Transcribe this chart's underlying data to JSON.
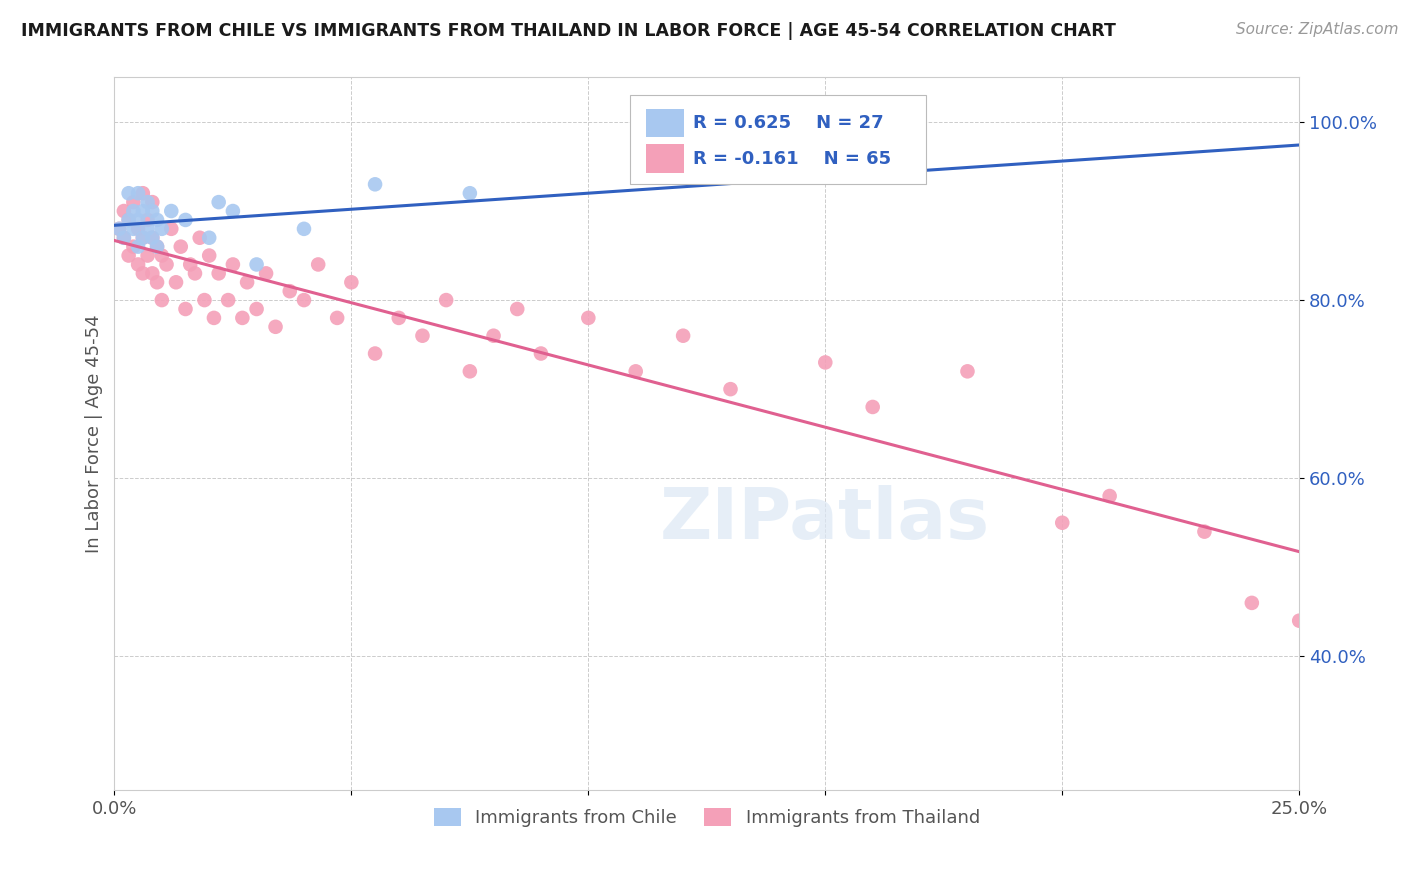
{
  "title": "IMMIGRANTS FROM CHILE VS IMMIGRANTS FROM THAILAND IN LABOR FORCE | AGE 45-54 CORRELATION CHART",
  "source": "Source: ZipAtlas.com",
  "ylabel": "In Labor Force | Age 45-54",
  "xmin": 0.0,
  "xmax": 0.25,
  "ymin": 0.25,
  "ymax": 1.05,
  "chile_color": "#a8c8f0",
  "thailand_color": "#f4a0b8",
  "chile_line_color": "#3060c0",
  "thailand_line_color": "#e06090",
  "R_chile": 0.625,
  "N_chile": 27,
  "R_thailand": -0.161,
  "N_thailand": 65,
  "legend_color": "#3060c0",
  "chile_points_x": [
    0.001,
    0.002,
    0.003,
    0.003,
    0.004,
    0.004,
    0.005,
    0.005,
    0.005,
    0.006,
    0.006,
    0.007,
    0.007,
    0.008,
    0.008,
    0.009,
    0.009,
    0.01,
    0.012,
    0.015,
    0.02,
    0.022,
    0.025,
    0.03,
    0.04,
    0.055,
    0.075
  ],
  "chile_points_y": [
    0.88,
    0.87,
    0.89,
    0.92,
    0.88,
    0.9,
    0.86,
    0.89,
    0.92,
    0.87,
    0.9,
    0.88,
    0.91,
    0.87,
    0.9,
    0.86,
    0.89,
    0.88,
    0.9,
    0.89,
    0.87,
    0.91,
    0.9,
    0.84,
    0.88,
    0.93,
    0.92
  ],
  "thailand_points_x": [
    0.001,
    0.002,
    0.002,
    0.003,
    0.003,
    0.004,
    0.004,
    0.005,
    0.005,
    0.006,
    0.006,
    0.006,
    0.007,
    0.007,
    0.008,
    0.008,
    0.008,
    0.009,
    0.009,
    0.01,
    0.01,
    0.011,
    0.012,
    0.013,
    0.014,
    0.015,
    0.016,
    0.017,
    0.018,
    0.019,
    0.02,
    0.021,
    0.022,
    0.024,
    0.025,
    0.027,
    0.028,
    0.03,
    0.032,
    0.034,
    0.037,
    0.04,
    0.043,
    0.047,
    0.05,
    0.055,
    0.06,
    0.065,
    0.07,
    0.075,
    0.08,
    0.085,
    0.09,
    0.1,
    0.11,
    0.12,
    0.13,
    0.15,
    0.16,
    0.18,
    0.2,
    0.21,
    0.23,
    0.24,
    0.25
  ],
  "thailand_points_y": [
    0.88,
    0.87,
    0.9,
    0.85,
    0.89,
    0.86,
    0.91,
    0.84,
    0.88,
    0.83,
    0.87,
    0.92,
    0.85,
    0.89,
    0.83,
    0.87,
    0.91,
    0.82,
    0.86,
    0.8,
    0.85,
    0.84,
    0.88,
    0.82,
    0.86,
    0.79,
    0.84,
    0.83,
    0.87,
    0.8,
    0.85,
    0.78,
    0.83,
    0.8,
    0.84,
    0.78,
    0.82,
    0.79,
    0.83,
    0.77,
    0.81,
    0.8,
    0.84,
    0.78,
    0.82,
    0.74,
    0.78,
    0.76,
    0.8,
    0.72,
    0.76,
    0.79,
    0.74,
    0.78,
    0.72,
    0.76,
    0.7,
    0.73,
    0.68,
    0.72,
    0.55,
    0.58,
    0.54,
    0.46,
    0.44
  ],
  "watermark": "ZIPatlas",
  "background_color": "#ffffff",
  "grid_color": "#cccccc"
}
